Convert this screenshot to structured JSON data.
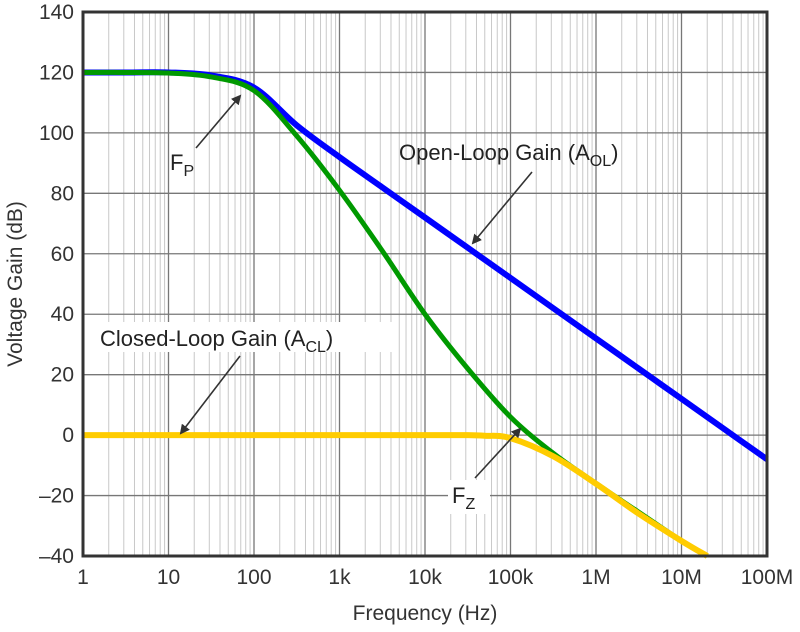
{
  "chart_data": {
    "type": "line",
    "title": "",
    "xlabel": "Frequency (Hz)",
    "ylabel": "Voltage Gain (dB)",
    "xscale": "log",
    "xlim": [
      1,
      100000000
    ],
    "ylim": [
      -40,
      140
    ],
    "grid": true,
    "x_ticks": [
      1,
      10,
      100,
      1000,
      10000,
      100000,
      1000000,
      10000000,
      100000000
    ],
    "x_tick_labels": [
      "1",
      "10",
      "100",
      "1k",
      "10k",
      "100k",
      "1M",
      "10M",
      "100M"
    ],
    "y_ticks": [
      140,
      120,
      100,
      80,
      60,
      40,
      20,
      0,
      -20,
      -40
    ],
    "y_tick_labels": [
      "140",
      "120",
      "100",
      "80",
      "60",
      "40",
      "20",
      "0",
      "–20",
      "–40"
    ],
    "series": [
      {
        "name": "Open-Loop Gain (AOL)",
        "color": "#0000ff",
        "x": [
          1,
          3.16,
          10,
          31.6,
          100,
          316,
          1000,
          3160,
          10000,
          31600,
          100000,
          316000,
          1000000,
          3160000,
          10000000,
          31600000,
          100000000
        ],
        "y": [
          120,
          120,
          120,
          119,
          115,
          102.5,
          92,
          82,
          72,
          62,
          52,
          42,
          32,
          22,
          12,
          2,
          -8
        ]
      },
      {
        "color": "#009900",
        "x": [
          1,
          3.16,
          10,
          31.6,
          100,
          316,
          1000,
          3160,
          10000,
          31600,
          100000,
          316000,
          1000000,
          3160000,
          10000000,
          20000000
        ],
        "y": [
          120,
          120,
          119.8,
          118.5,
          114,
          99,
          81,
          61,
          40,
          22,
          6,
          -6,
          -16,
          -25.5,
          -35,
          -40
        ]
      },
      {
        "name": "Closed-Loop Gain (ACL)",
        "color": "#ffcc00",
        "x": [
          1,
          10,
          100,
          1000,
          10000,
          31600,
          50000,
          100000,
          316000,
          1000000,
          3160000,
          10000000,
          20000000
        ],
        "y": [
          0,
          0,
          0,
          0,
          0,
          0,
          -0.2,
          -1,
          -7,
          -16.1,
          -26,
          -35,
          -40
        ]
      }
    ],
    "annotations": {
      "fp": {
        "main": "F",
        "sub": "P"
      },
      "fz": {
        "main": "F",
        "sub": "Z"
      },
      "aol": {
        "main": "Open-Loop Gain (A",
        "sub": "OL",
        "end": ")"
      },
      "acl": {
        "main": "Closed-Loop Gain (A",
        "sub": "CL",
        "end": ")"
      }
    }
  }
}
